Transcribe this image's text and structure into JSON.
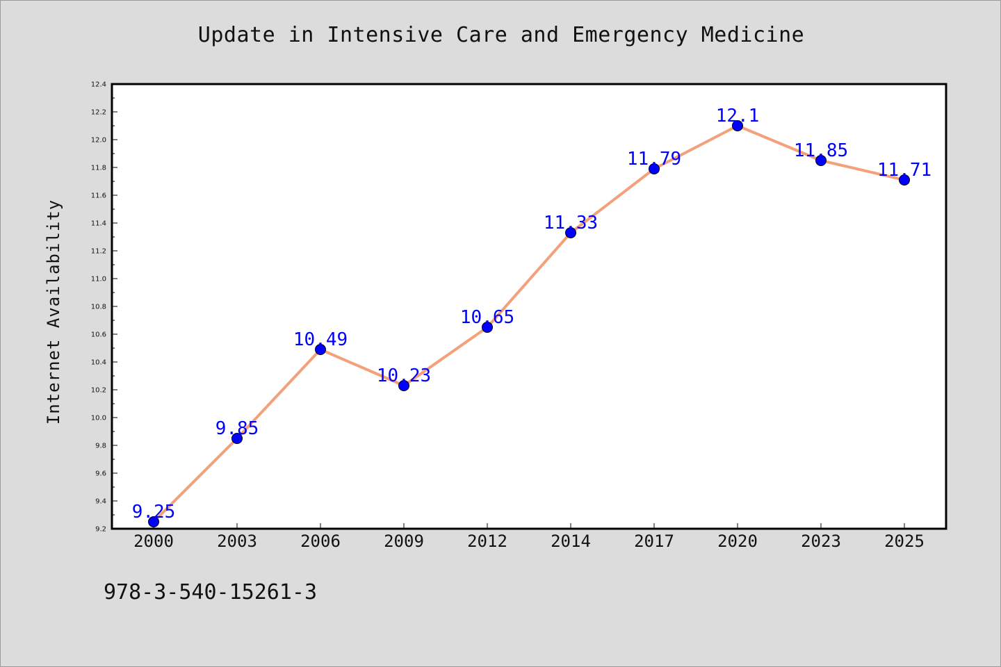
{
  "chart_data": {
    "type": "line",
    "title": "Update in Intensive Care and Emergency Medicine",
    "xlabel": "",
    "ylabel": "Internet Availability",
    "categories": [
      "2000",
      "2003",
      "2006",
      "2009",
      "2012",
      "2014",
      "2017",
      "2020",
      "2023",
      "2025"
    ],
    "series": [
      {
        "values": [
          9.25,
          9.85,
          10.49,
          10.23,
          10.65,
          11.33,
          11.79,
          12.1,
          11.85,
          11.71
        ],
        "data_labels": [
          "9.25",
          "9.85",
          "10.49",
          "10.23",
          "10.65",
          "11.33",
          "11.79",
          "12.1",
          "11.85",
          "11.71"
        ]
      }
    ],
    "ylim": [
      9.2,
      12.4
    ],
    "yticks": [
      "9.2",
      "9.4",
      "9.6",
      "9.8",
      "10.0",
      "10.2",
      "10.4",
      "10.6",
      "10.8",
      "11.0",
      "11.2",
      "11.4",
      "11.6",
      "11.8",
      "12.0",
      "12.2",
      "12.4"
    ],
    "grid": false,
    "line_color": "#f4a07a",
    "marker_color": "#0000ff",
    "label_color": "#0000ff",
    "background_color": "#dcdcdc",
    "plot_background_color": "#ffffff"
  },
  "footer": {
    "isbn": "978-3-540-15261-3"
  }
}
